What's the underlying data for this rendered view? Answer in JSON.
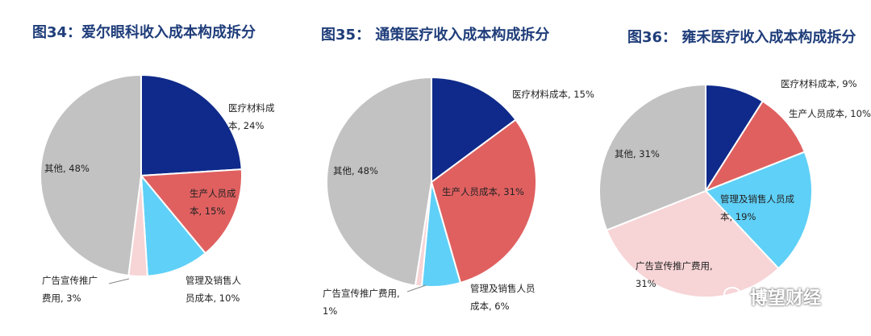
{
  "chart_data": [
    {
      "type": "pie",
      "title": "图34：爱尔眼科收入成本构成拆分",
      "slices": [
        {
          "label": "医疗材料成本",
          "value": 24,
          "label_lines": [
            "医疗材料成",
            "本, 24%"
          ],
          "color": "#0f2a8a"
        },
        {
          "label": "生产人员成本",
          "value": 15,
          "label_lines": [
            "生产人员成",
            "本, 15%"
          ],
          "color": "#e06060"
        },
        {
          "label": "管理及销售人员成本",
          "value": 10,
          "label_lines": [
            "管理及销售人",
            "员成本, 10%"
          ],
          "color": "#5fd0f7"
        },
        {
          "label": "广告宣传推广费用",
          "value": 3,
          "label_lines": [
            "广告宣传推广",
            "费用, 3%"
          ],
          "color": "#f7d4d6"
        },
        {
          "label": "其他",
          "value": 48,
          "label_lines": [
            "其他, 48%"
          ],
          "color": "#c2c2c2"
        }
      ]
    },
    {
      "type": "pie",
      "title": "图35： 通策医疗收入成本构成拆分",
      "slices": [
        {
          "label": "医疗材料成本",
          "value": 15,
          "label_lines": [
            "医疗材料成本, 15%"
          ],
          "color": "#0f2a8a"
        },
        {
          "label": "生产人员成本",
          "value": 31,
          "label_lines": [
            "生产人员成本, 31%"
          ],
          "color": "#e06060"
        },
        {
          "label": "管理及销售人员成本",
          "value": 6,
          "label_lines": [
            "管理及销售人员",
            "成本, 6%"
          ],
          "color": "#5fd0f7"
        },
        {
          "label": "广告宣传推广费用",
          "value": 1,
          "label_lines": [
            "广告宣传推广费用,",
            "1%"
          ],
          "color": "#f7d4d6"
        },
        {
          "label": "其他",
          "value": 48,
          "label_lines": [
            "其他, 48%"
          ],
          "color": "#c2c2c2"
        }
      ]
    },
    {
      "type": "pie",
      "title": "图36： 雍禾医疗收入成本构成拆分",
      "slices": [
        {
          "label": "医疗材料成本",
          "value": 9,
          "label_lines": [
            "医疗材料成本, 9%"
          ],
          "color": "#0f2a8a"
        },
        {
          "label": "生产人员成本",
          "value": 10,
          "label_lines": [
            "生产人员成本, 10%"
          ],
          "color": "#e06060"
        },
        {
          "label": "管理及销售人员成本",
          "value": 19,
          "label_lines": [
            "管理及销售人员成",
            "本, 19%"
          ],
          "color": "#5fd0f7"
        },
        {
          "label": "广告宣传推广费用",
          "value": 31,
          "label_lines": [
            "广告宣传推广费用,",
            "31%"
          ],
          "color": "#f7d4d6"
        },
        {
          "label": "其他",
          "value": 31,
          "label_lines": [
            "其他, 31%"
          ],
          "color": "#c2c2c2"
        }
      ]
    }
  ],
  "watermark": {
    "text": "博望财经",
    "icon": "wechat-icon"
  }
}
